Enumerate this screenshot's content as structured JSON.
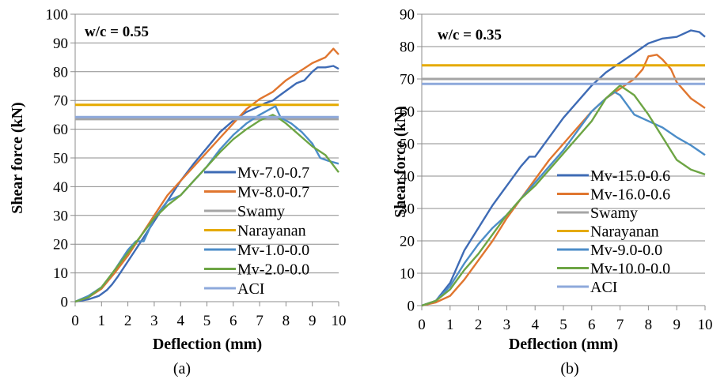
{
  "chart_data": [
    {
      "type": "line",
      "panel_label": "(a)",
      "annotation": "w/c = 0.55",
      "xlabel": "Deflection (mm)",
      "ylabel": "Shear force (kN)",
      "xlim": [
        0,
        10
      ],
      "ylim": [
        0,
        100
      ],
      "xticks": [
        "0",
        "1",
        "2",
        "3",
        "4",
        "5",
        "6",
        "7",
        "8",
        "9",
        "10"
      ],
      "yticks": [
        "0",
        "10",
        "20",
        "30",
        "40",
        "50",
        "60",
        "70",
        "80",
        "90",
        "100"
      ],
      "grid": "horizontal",
      "legend_position": "bottom-right",
      "series": [
        {
          "name": "Mv-7.0-0.7",
          "color": "#3E6BB5",
          "x": [
            0,
            0.5,
            0.9,
            1.2,
            1.4,
            1.6,
            2,
            2.5,
            3,
            3.5,
            4,
            4.5,
            5,
            5.5,
            6,
            6.5,
            7,
            7.2,
            7.5,
            7.8,
            8.1,
            8.4,
            8.7,
            9,
            9.2,
            9.5,
            9.8,
            10
          ],
          "y": [
            0,
            0.8,
            2,
            4,
            6,
            8.5,
            14,
            21,
            28,
            35,
            42,
            48,
            53.5,
            59,
            63,
            66,
            68,
            69,
            70,
            72,
            74,
            76,
            77,
            80,
            81.5,
            81.5,
            82,
            81
          ]
        },
        {
          "name": "Mv-8.0-0.7",
          "color": "#E0762F",
          "x": [
            0,
            0.5,
            1,
            1.5,
            2,
            2.5,
            3,
            3.5,
            4,
            4.5,
            5,
            5.5,
            6,
            6.5,
            7,
            7.5,
            8,
            8.5,
            9,
            9.5,
            9.8,
            10
          ],
          "y": [
            0,
            1.5,
            4.5,
            10,
            16,
            23,
            30,
            37,
            42,
            47,
            52,
            57,
            62,
            67,
            70.5,
            73,
            77,
            80,
            83,
            85,
            88,
            86
          ]
        },
        {
          "name": "Swamy",
          "color": "#A5A5A5",
          "x": [
            0,
            10
          ],
          "y": [
            63.5,
            63.5
          ]
        },
        {
          "name": "Narayanan",
          "color": "#E5AA00",
          "x": [
            0,
            10
          ],
          "y": [
            68.5,
            68.5
          ]
        },
        {
          "name": "Mv-1.0-0.0",
          "color": "#4C8DC8",
          "x": [
            0,
            0.5,
            1,
            1.3,
            1.5,
            2,
            2.3,
            2.6,
            3,
            3.5,
            4,
            4.5,
            5,
            5.5,
            6,
            6.5,
            7,
            7.4,
            7.6,
            7.8,
            8.2,
            8.6,
            9,
            9.3,
            9.6,
            10
          ],
          "y": [
            0,
            2,
            5,
            8.5,
            11,
            18,
            21,
            21,
            29,
            35,
            37,
            42,
            47,
            53,
            58,
            62,
            65,
            67,
            68,
            64,
            62,
            59,
            55,
            50,
            49,
            48
          ]
        },
        {
          "name": "Mv-2.0-0.0",
          "color": "#6DA544",
          "x": [
            0,
            0.5,
            1,
            1.5,
            2,
            2.5,
            3,
            3.5,
            4,
            4.5,
            5,
            5.5,
            6,
            6.5,
            7,
            7.5,
            7.7,
            8,
            8.5,
            9,
            9.5,
            10
          ],
          "y": [
            0,
            1.5,
            5,
            11,
            17,
            23,
            29,
            33.5,
            37,
            42,
            47,
            52,
            56.5,
            60,
            63,
            65,
            64,
            62,
            58,
            54,
            51,
            45
          ]
        },
        {
          "name": "ACI",
          "color": "#8EA9DB",
          "x": [
            0,
            10
          ],
          "y": [
            64.2,
            64.2
          ]
        }
      ]
    },
    {
      "type": "line",
      "panel_label": "(b)",
      "annotation": "w/c = 0.35",
      "xlabel": "Deflection (mm)",
      "ylabel": "Shear force (kN)",
      "xlim": [
        0,
        10
      ],
      "ylim": [
        0,
        90
      ],
      "xticks": [
        "0",
        "1",
        "2",
        "3",
        "4",
        "5",
        "6",
        "7",
        "8",
        "9",
        "10"
      ],
      "yticks": [
        "0",
        "10",
        "20",
        "30",
        "40",
        "50",
        "60",
        "70",
        "80",
        "90"
      ],
      "grid": "horizontal",
      "legend_position": "bottom-right",
      "series": [
        {
          "name": "Mv-15.0-0.6",
          "color": "#3E6BB5",
          "x": [
            0,
            0.5,
            1,
            1.5,
            2,
            2.5,
            3,
            3.5,
            3.8,
            4,
            4.5,
            5,
            5.5,
            6,
            6.5,
            7,
            7.5,
            8,
            8.5,
            9,
            9.5,
            9.8,
            10
          ],
          "y": [
            0,
            1.5,
            7,
            17,
            24,
            31,
            37,
            43,
            46,
            46,
            52,
            58,
            63,
            68,
            72,
            75,
            78,
            81,
            82.5,
            83,
            85,
            84.5,
            83
          ]
        },
        {
          "name": "Mv-16.0-0.6",
          "color": "#E0762F",
          "x": [
            0,
            0.5,
            1,
            1.5,
            2,
            2.5,
            3,
            3.5,
            4,
            4.5,
            5,
            5.5,
            6,
            6.5,
            7,
            7.5,
            7.8,
            8,
            8.3,
            8.5,
            8.8,
            9,
            9.5,
            10
          ],
          "y": [
            0,
            1,
            3,
            8,
            14,
            20,
            27,
            33,
            39,
            45,
            50,
            55,
            60,
            64,
            67,
            70,
            73,
            77,
            77.5,
            76,
            73,
            69,
            64,
            61
          ]
        },
        {
          "name": "Swamy",
          "color": "#A5A5A5",
          "x": [
            0,
            10
          ],
          "y": [
            70,
            70
          ]
        },
        {
          "name": "Narayanan",
          "color": "#E5AA00",
          "x": [
            0,
            10
          ],
          "y": [
            74.2,
            74.2
          ]
        },
        {
          "name": "Mv-9.0-0.0",
          "color": "#4C8DC8",
          "x": [
            0,
            0.5,
            1,
            1.5,
            2,
            2.5,
            3,
            3.5,
            4,
            4.5,
            5,
            5.5,
            6,
            6.5,
            6.8,
            7,
            7.5,
            8,
            8.5,
            9,
            9.5,
            10
          ],
          "y": [
            0,
            1.5,
            6,
            13,
            19,
            24,
            28,
            33,
            38,
            43,
            48,
            54,
            60,
            64,
            66,
            65,
            59,
            57,
            55,
            52,
            49.5,
            46.5
          ]
        },
        {
          "name": "Mv-10.0-0.0",
          "color": "#6DA544",
          "x": [
            0,
            0.5,
            1,
            1.5,
            2,
            2.5,
            3,
            3.5,
            4,
            4.5,
            5,
            5.5,
            6,
            6.5,
            7,
            7.5,
            8,
            8.5,
            9,
            9.5,
            10
          ],
          "y": [
            0,
            1.5,
            5,
            11,
            16,
            22,
            28,
            33,
            37,
            42,
            47,
            52,
            57,
            64,
            68,
            65,
            59,
            52,
            45,
            42,
            40.5
          ]
        },
        {
          "name": "ACI",
          "color": "#8EA9DB",
          "x": [
            0,
            10
          ],
          "y": [
            68.5,
            68.5
          ]
        }
      ]
    }
  ]
}
